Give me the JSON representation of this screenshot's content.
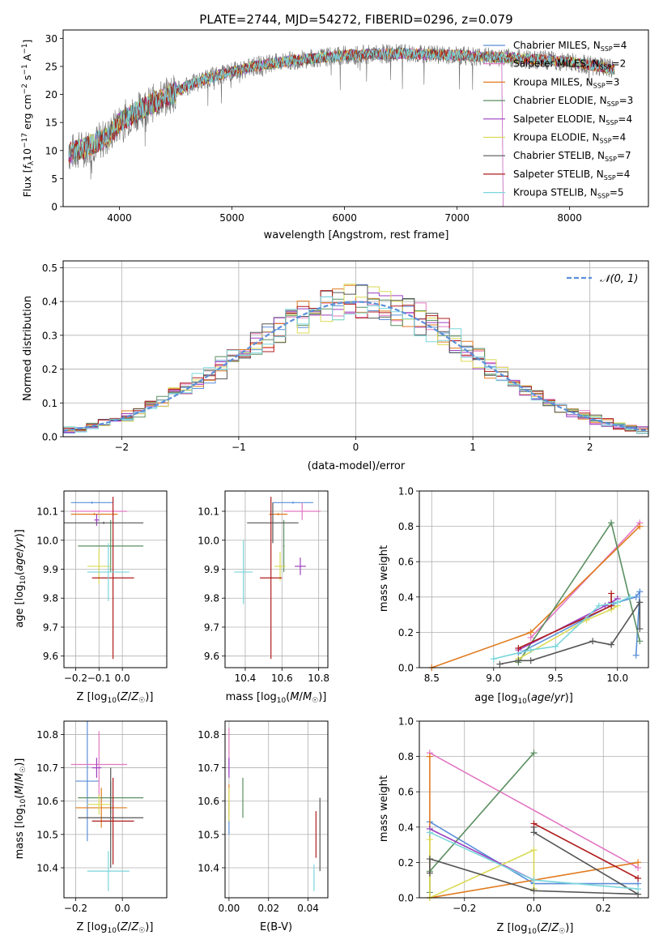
{
  "chart_data": {
    "colors": {
      "Chabrier MILES": "#5b8fd9",
      "Salpeter MILES": "#e377c2",
      "Kroupa MILES": "#e07b1e",
      "Chabrier ELODIE": "#5b8f60",
      "Salpeter ELODIE": "#9c3fc0",
      "Kroupa ELODIE": "#dada55",
      "Chabrier STELIB": "#555555",
      "Salpeter STELIB": "#b01c1c",
      "Kroupa STELIB": "#7ad6dc",
      "data": "#707070",
      "gaussian": "#5b8fd9",
      "grid": "#b0b0b0"
    },
    "spectrum": {
      "type": "line",
      "title": "PLATE=2744, MJD=54272, FIBERID=0296, z=0.079",
      "xlabel": "wavelength [Angstrom, rest frame]",
      "ylabel": "Flux [f_λ10^-17 erg cm^-2 s^-1 A^-1]",
      "xlim": [
        3500,
        8700
      ],
      "ylim": [
        0,
        31.5
      ],
      "xticks": [
        4000,
        5000,
        6000,
        7000,
        8000
      ],
      "yticks": [
        0,
        5,
        10,
        15,
        20,
        25,
        30
      ],
      "continuum": [
        [
          3550,
          9.5
        ],
        [
          3700,
          10.5
        ],
        [
          3900,
          12.5
        ],
        [
          4000,
          15
        ],
        [
          4200,
          17.5
        ],
        [
          4400,
          19.5
        ],
        [
          4600,
          21.5
        ],
        [
          4800,
          23
        ],
        [
          5000,
          24
        ],
        [
          5200,
          25
        ],
        [
          5500,
          26
        ],
        [
          6000,
          27
        ],
        [
          6500,
          27.3
        ],
        [
          7000,
          27
        ],
        [
          7500,
          26.5
        ],
        [
          8000,
          25.8
        ],
        [
          8400,
          24.5
        ]
      ],
      "legend": [
        {
          "name": "Chabrier MILES",
          "nssp": 4
        },
        {
          "name": "Salpeter MILES",
          "nssp": 2
        },
        {
          "name": "Kroupa MILES",
          "nssp": 3
        },
        {
          "name": "Chabrier ELODIE",
          "nssp": 3
        },
        {
          "name": "Salpeter ELODIE",
          "nssp": 4
        },
        {
          "name": "Kroupa ELODIE",
          "nssp": 4
        },
        {
          "name": "Chabrier STELIB",
          "nssp": 7
        },
        {
          "name": "Salpeter STELIB",
          "nssp": 4
        },
        {
          "name": "Kroupa STELIB",
          "nssp": 5
        }
      ]
    },
    "residuals": {
      "type": "step",
      "xlabel": "(data-model)/error",
      "ylabel": "Normed distribution",
      "xlim": [
        -2.5,
        2.5
      ],
      "ylim": [
        0,
        0.52
      ],
      "xticks": [
        -2,
        -1,
        0,
        1,
        2
      ],
      "yticks": [
        0.0,
        0.1,
        0.2,
        0.3,
        0.4,
        0.5
      ],
      "gaussian_label": "N(0,1)",
      "bin_width": 0.1
    },
    "age_vs_Z": {
      "xlabel": "Z [log10(Z/Z☉)]",
      "ylabel": "age [log10(age/yr)]",
      "xlim": [
        -0.25,
        0.19
      ],
      "ylim": [
        9.56,
        10.17
      ],
      "xticks": [
        -0.2,
        -0.1,
        0.0
      ],
      "yticks": [
        9.6,
        9.7,
        9.8,
        9.9,
        10.0,
        10.1
      ],
      "points": [
        {
          "model": "Chabrier MILES",
          "x": -0.13,
          "xerr": 0.09,
          "y": 10.13,
          "yerr": 0.0
        },
        {
          "model": "Salpeter MILES",
          "x": -0.1,
          "xerr": 0.12,
          "y": 10.1,
          "yerr": 0.0
        },
        {
          "model": "Kroupa MILES",
          "x": -0.12,
          "xerr": 0.1,
          "y": 10.09,
          "yerr": 0.0
        },
        {
          "model": "Chabrier ELODIE",
          "x": -0.05,
          "xerr": 0.14,
          "y": 9.98,
          "yerr": 0.09
        },
        {
          "model": "Salpeter ELODIE",
          "x": -0.11,
          "xerr": 0.01,
          "y": 10.07,
          "yerr": 0.02
        },
        {
          "model": "Kroupa ELODIE",
          "x": -0.1,
          "xerr": 0.05,
          "y": 9.91,
          "yerr": 0.06
        },
        {
          "model": "Chabrier STELIB",
          "x": -0.08,
          "xerr": 0.17,
          "y": 10.06,
          "yerr": 0.0
        },
        {
          "model": "Salpeter STELIB",
          "x": -0.04,
          "xerr": 0.09,
          "y": 9.87,
          "yerr": 0.28
        },
        {
          "model": "Kroupa STELIB",
          "x": -0.06,
          "xerr": 0.09,
          "y": 9.89,
          "yerr": 0.1
        }
      ]
    },
    "age_vs_mass": {
      "xlabel": "mass [log10(M/M☉)]",
      "ylabel": "",
      "xlim": [
        10.29,
        10.85
      ],
      "ylim": [
        9.56,
        10.17
      ],
      "xticks": [
        10.4,
        10.6,
        10.8
      ],
      "yticks": [
        9.6,
        9.7,
        9.8,
        9.9,
        10.0,
        10.1
      ],
      "points": [
        {
          "model": "Chabrier MILES",
          "x": 10.66,
          "xerr": 0.11,
          "y": 10.13,
          "yerr": 0.0
        },
        {
          "model": "Salpeter MILES",
          "x": 10.71,
          "xerr": 0.1,
          "y": 10.1,
          "yerr": 0.03
        },
        {
          "model": "Kroupa MILES",
          "x": 10.58,
          "xerr": 0.05,
          "y": 10.09,
          "yerr": 0.0
        },
        {
          "model": "Chabrier ELODIE",
          "x": 10.61,
          "xerr": 0.0,
          "y": 9.98,
          "yerr": 0.09
        },
        {
          "model": "Salpeter ELODIE",
          "x": 10.7,
          "xerr": 0.03,
          "y": 9.91,
          "yerr": 0.03
        },
        {
          "model": "Kroupa ELODIE",
          "x": 10.59,
          "xerr": 0.03,
          "y": 9.91,
          "yerr": 0.05
        },
        {
          "model": "Chabrier STELIB",
          "x": 10.55,
          "xerr": 0.14,
          "y": 10.06,
          "yerr": 0.07
        },
        {
          "model": "Salpeter STELIB",
          "x": 10.54,
          "xerr": 0.06,
          "y": 9.87,
          "yerr": 0.28
        },
        {
          "model": "Kroupa STELIB",
          "x": 10.39,
          "xerr": 0.05,
          "y": 9.89,
          "yerr": 0.11
        }
      ]
    },
    "mass_weight_vs_age": {
      "xlabel": "age [log10(age/yr)]",
      "ylabel": "mass weight",
      "xlim": [
        8.4,
        10.25
      ],
      "ylim": [
        0,
        1.0
      ],
      "xticks": [
        8.5,
        9.0,
        9.5,
        10.0
      ],
      "yticks": [
        0.0,
        0.2,
        0.4,
        0.6,
        0.8,
        1.0
      ],
      "series": [
        {
          "model": "Chabrier MILES",
          "points": [
            [
              9.2,
              0.08
            ],
            [
              10.0,
              0.37
            ],
            [
              10.15,
              0.4
            ],
            [
              10.18,
              0.43
            ],
            [
              10.15,
              0.07
            ]
          ]
        },
        {
          "model": "Salpeter MILES",
          "points": [
            [
              9.3,
              0.17
            ],
            [
              10.18,
              0.82
            ]
          ]
        },
        {
          "model": "Kroupa MILES",
          "points": [
            [
              8.5,
              0.0
            ],
            [
              9.3,
              0.2
            ],
            [
              10.18,
              0.8
            ]
          ]
        },
        {
          "model": "Chabrier ELODIE",
          "points": [
            [
              9.2,
              0.03
            ],
            [
              9.95,
              0.82
            ],
            [
              10.18,
              0.15
            ]
          ]
        },
        {
          "model": "Salpeter ELODIE",
          "points": [
            [
              9.2,
              0.1
            ],
            [
              9.9,
              0.35
            ],
            [
              9.95,
              0.37
            ],
            [
              10.0,
              0.39
            ]
          ]
        },
        {
          "model": "Kroupa ELODIE",
          "points": [
            [
              9.2,
              0.05
            ],
            [
              9.75,
              0.27
            ],
            [
              9.95,
              0.33
            ],
            [
              10.0,
              0.35
            ]
          ]
        },
        {
          "model": "Chabrier STELIB",
          "points": [
            [
              9.05,
              0.02
            ],
            [
              9.2,
              0.04
            ],
            [
              9.3,
              0.04
            ],
            [
              9.8,
              0.15
            ],
            [
              9.95,
              0.13
            ],
            [
              10.18,
              0.37
            ],
            [
              10.18,
              0.22
            ]
          ]
        },
        {
          "model": "Salpeter STELIB",
          "points": [
            [
              9.2,
              0.11
            ],
            [
              9.95,
              0.35
            ],
            [
              9.95,
              0.42
            ]
          ]
        },
        {
          "model": "Kroupa STELIB",
          "points": [
            [
              9.0,
              0.05
            ],
            [
              9.3,
              0.1
            ],
            [
              9.5,
              0.12
            ],
            [
              9.85,
              0.35
            ],
            [
              10.0,
              0.37
            ],
            [
              10.1,
              0.4
            ]
          ]
        }
      ]
    },
    "mass_vs_Z": {
      "xlabel": "Z [log10(Z/Z☉)]",
      "ylabel": "mass [log10(M/M☉)]",
      "xlim": [
        -0.25,
        0.19
      ],
      "ylim": [
        10.31,
        10.84
      ],
      "xticks": [
        -0.2,
        0.0
      ],
      "yticks": [
        10.4,
        10.5,
        10.6,
        10.7,
        10.8
      ],
      "points": [
        {
          "model": "Chabrier MILES",
          "x": -0.15,
          "xerr": 0.05,
          "y": 10.66,
          "yerr": 0.18
        },
        {
          "model": "Salpeter MILES",
          "x": -0.1,
          "xerr": 0.12,
          "y": 10.71,
          "yerr": 0.1
        },
        {
          "model": "Kroupa MILES",
          "x": -0.09,
          "xerr": 0.11,
          "y": 10.58,
          "yerr": 0.06
        },
        {
          "model": "Chabrier ELODIE",
          "x": -0.05,
          "xerr": 0.14,
          "y": 10.61,
          "yerr": 0.05
        },
        {
          "model": "Salpeter ELODIE",
          "x": -0.11,
          "xerr": 0.02,
          "y": 10.7,
          "yerr": 0.03
        },
        {
          "model": "Kroupa ELODIE",
          "x": -0.1,
          "xerr": 0.05,
          "y": 10.59,
          "yerr": 0.03
        },
        {
          "model": "Chabrier STELIB",
          "x": -0.05,
          "xerr": 0.14,
          "y": 10.55,
          "yerr": 0.15
        },
        {
          "model": "Salpeter STELIB",
          "x": -0.04,
          "xerr": 0.09,
          "y": 10.54,
          "yerr": 0.13
        },
        {
          "model": "Kroupa STELIB",
          "x": -0.06,
          "xerr": 0.09,
          "y": 10.39,
          "yerr": 0.06
        }
      ]
    },
    "mass_vs_ebv": {
      "xlabel": "E(B-V)",
      "ylabel": "",
      "xlim": [
        -0.002,
        0.05
      ],
      "ylim": [
        10.31,
        10.84
      ],
      "xticks": [
        0.0,
        0.02,
        0.04
      ],
      "yticks": [
        10.4,
        10.5,
        10.6,
        10.7,
        10.8
      ],
      "points": [
        {
          "model": "Chabrier MILES",
          "x": 0.0,
          "y": 10.55,
          "yerr": 0.05
        },
        {
          "model": "Salpeter MILES",
          "x": 0.0,
          "y": 10.75,
          "yerr": 0.07
        },
        {
          "model": "Kroupa MILES",
          "x": 0.0,
          "y": 10.6,
          "yerr": 0.05
        },
        {
          "model": "Chabrier ELODIE",
          "x": 0.007,
          "y": 10.61,
          "yerr": 0.06
        },
        {
          "model": "Salpeter ELODIE",
          "x": 0.0,
          "y": 10.7,
          "yerr": 0.03
        },
        {
          "model": "Kroupa ELODIE",
          "x": 0.0,
          "y": 10.59,
          "yerr": 0.05
        },
        {
          "model": "Chabrier STELIB",
          "x": 0.046,
          "y": 10.5,
          "yerr": 0.11
        },
        {
          "model": "Salpeter STELIB",
          "x": 0.044,
          "y": 10.5,
          "yerr": 0.07
        },
        {
          "model": "Kroupa STELIB",
          "x": 0.043,
          "y": 10.37,
          "yerr": 0.04
        }
      ]
    },
    "mass_weight_vs_Z": {
      "xlabel": "Z [log10(Z/Z☉)]",
      "ylabel": "mass weight",
      "xlim": [
        -0.33,
        0.33
      ],
      "ylim": [
        0,
        1.0
      ],
      "xticks": [
        -0.2,
        0.0,
        0.2
      ],
      "yticks": [
        0.0,
        0.2,
        0.4,
        0.6,
        0.8,
        1.0
      ],
      "series": [
        {
          "model": "Chabrier MILES",
          "points": [
            [
              -0.3,
              0.43
            ],
            [
              0.0,
              0.08
            ],
            [
              0.3,
              0.08
            ]
          ]
        },
        {
          "model": "Salpeter MILES",
          "points": [
            [
              -0.3,
              0.82
            ],
            [
              0.3,
              0.17
            ]
          ]
        },
        {
          "model": "Kroupa MILES",
          "points": [
            [
              -0.3,
              0.8
            ],
            [
              -0.3,
              0.0
            ],
            [
              0.3,
              0.2
            ]
          ]
        },
        {
          "model": "Chabrier ELODIE",
          "points": [
            [
              -0.3,
              0.03
            ],
            [
              -0.3,
              0.15
            ],
            [
              0.0,
              0.82
            ]
          ]
        },
        {
          "model": "Salpeter ELODIE",
          "points": [
            [
              -0.3,
              0.39
            ],
            [
              0.0,
              0.1
            ]
          ]
        },
        {
          "model": "Kroupa ELODIE",
          "points": [
            [
              -0.3,
              0.33
            ],
            [
              -0.3,
              0.0
            ],
            [
              0.0,
              0.27
            ],
            [
              0.0,
              0.05
            ]
          ]
        },
        {
          "model": "Chabrier STELIB",
          "points": [
            [
              -0.3,
              0.14
            ],
            [
              -0.3,
              0.22
            ],
            [
              0.0,
              0.04
            ],
            [
              0.3,
              0.02
            ],
            [
              0.0,
              0.37
            ],
            [
              0.0,
              0.4
            ]
          ]
        },
        {
          "model": "Salpeter STELIB",
          "points": [
            [
              0.0,
              0.42
            ],
            [
              0.3,
              0.11
            ]
          ]
        },
        {
          "model": "Kroupa STELIB",
          "points": [
            [
              -0.3,
              0.37
            ],
            [
              0.0,
              0.1
            ],
            [
              0.3,
              0.05
            ]
          ]
        }
      ]
    }
  }
}
